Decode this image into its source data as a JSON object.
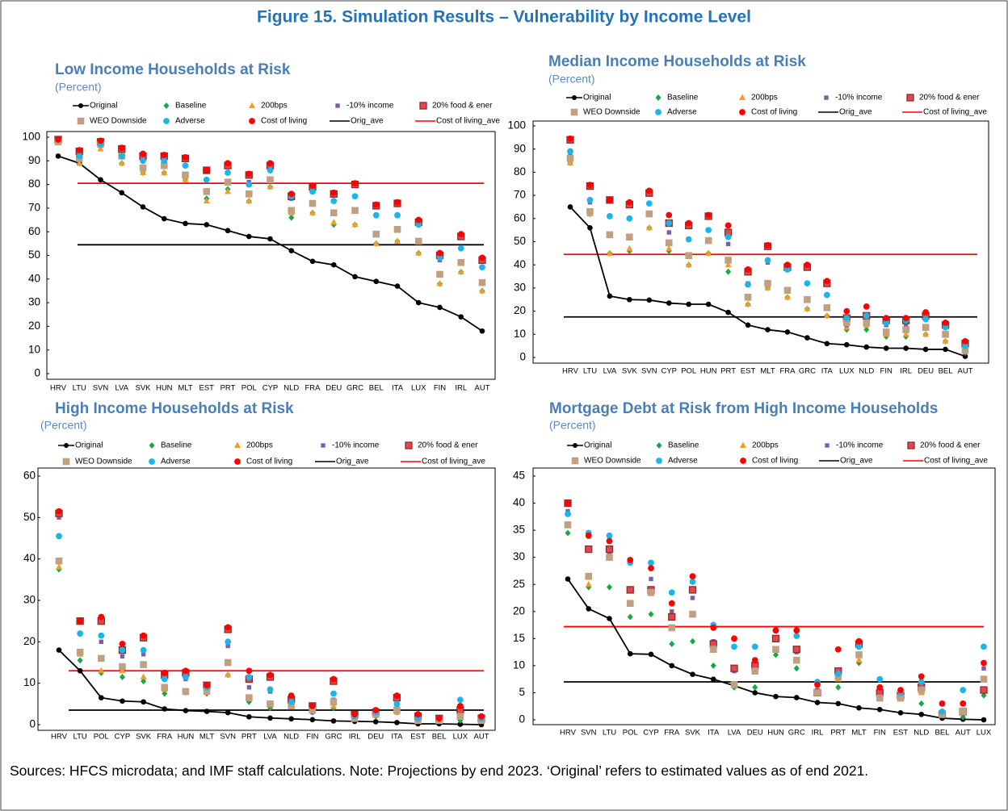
{
  "title": "Figure 15. Simulation Results – Vulnerability by Income Level",
  "note": "Sources: HFCS microdata; and IMF staff calculations. Note: Projections by end 2023. ‘Original’ refers to estimated values as of end 2021.",
  "chart_data": [
    {
      "type": "scatter",
      "title": "Low Income Households at Risk",
      "subtitle": "(Percent)",
      "categories": [
        "HRV",
        "LTU",
        "SVN",
        "LVA",
        "SVK",
        "HUN",
        "MLT",
        "EST",
        "PRT",
        "POL",
        "CYP",
        "NLD",
        "FRA",
        "DEU",
        "GRC",
        "BEL",
        "ITA",
        "LUX",
        "FIN",
        "IRL",
        "AUT"
      ],
      "ylim": [
        0,
        100
      ],
      "yticks": [
        0,
        10,
        20,
        30,
        40,
        50,
        60,
        70,
        80,
        90,
        100
      ],
      "series": [
        {
          "name": "Original",
          "color": "#000000",
          "marker": "line-dot",
          "values": [
            92,
            89,
            82,
            76.5,
            70.5,
            65.5,
            63.5,
            63,
            60.5,
            58,
            57,
            52,
            47.5,
            46,
            41,
            39,
            37,
            30,
            28,
            24,
            18
          ]
        },
        {
          "name": "Baseline",
          "color": "#1aa64a",
          "marker": "diamond",
          "values": [
            98,
            90,
            96,
            89,
            85,
            85,
            82,
            74,
            78,
            73,
            79,
            66,
            68,
            63,
            63,
            55,
            56,
            51,
            38,
            43,
            35
          ]
        },
        {
          "name": "200bps",
          "color": "#f39c2b",
          "marker": "triangle",
          "values": [
            98,
            89,
            95,
            89,
            85,
            85,
            82,
            73,
            77,
            73,
            79,
            68,
            68,
            64,
            63,
            55,
            56,
            51,
            38,
            43,
            35
          ]
        },
        {
          "name": "-10% income",
          "color": "#7b5ea7",
          "marker": "square-small",
          "values": [
            98,
            93,
            97,
            93,
            91,
            91,
            88,
            82,
            85,
            81,
            86,
            74,
            77,
            73,
            75,
            67,
            67,
            63,
            48,
            53,
            45
          ]
        },
        {
          "name": "20% food & ener",
          "color": "#e2474d",
          "edgecolor": "#8a2d2d",
          "marker": "square-edged",
          "values": [
            99,
            94,
            98,
            95,
            92,
            92,
            91,
            86,
            88,
            84,
            88,
            75,
            79,
            76,
            80,
            71,
            72,
            64,
            50,
            58,
            48
          ]
        },
        {
          "name": "WEO Downside",
          "color": "#c0a080",
          "marker": "square",
          "values": [
            98,
            91,
            97,
            92,
            87,
            88,
            84,
            77,
            81,
            76,
            82,
            69,
            72,
            68,
            69,
            59,
            61,
            56,
            42,
            47,
            38.5
          ]
        },
        {
          "name": "Adverse",
          "color": "#1db4ea",
          "marker": "circle",
          "values": [
            99,
            92,
            97,
            92,
            90,
            90,
            88,
            82,
            85,
            80,
            86,
            75,
            77,
            73,
            75,
            67,
            67,
            63,
            49,
            53,
            45
          ]
        },
        {
          "name": "Cost of living",
          "color": "#ff0000",
          "marker": "circle",
          "values": [
            99,
            94.5,
            98.5,
            95.5,
            93,
            92.5,
            91.5,
            86,
            89,
            84.5,
            89,
            76,
            79.5,
            76.5,
            80.5,
            71.5,
            72.5,
            65,
            51,
            59,
            49
          ]
        },
        {
          "name": "Orig_ave",
          "color": "#000000",
          "marker": "hline",
          "value": 54.5
        },
        {
          "name": "Cost of living_ave",
          "color": "#ff0000",
          "marker": "hline",
          "value": 80.5
        }
      ]
    },
    {
      "type": "scatter",
      "title": "Median Income Households at Risk",
      "subtitle": "(Percent)",
      "categories": [
        "HRV",
        "LTU",
        "LVA",
        "SVK",
        "SVN",
        "CYP",
        "POL",
        "HUN",
        "PRT",
        "EST",
        "MLT",
        "FRA",
        "GRC",
        "ITA",
        "LUX",
        "NLD",
        "FIN",
        "IRL",
        "DEU",
        "BEL",
        "AUT"
      ],
      "ylim": [
        0,
        100
      ],
      "yticks": [
        0,
        10,
        20,
        30,
        40,
        50,
        60,
        70,
        80,
        90,
        100
      ],
      "series": [
        {
          "name": "Original",
          "color": "#000000",
          "marker": "line-dot",
          "values": [
            65,
            56,
            26.5,
            25,
            24.8,
            23.5,
            23,
            23,
            19.5,
            14,
            12,
            11,
            8.5,
            6,
            5.5,
            4.5,
            4,
            4,
            3.5,
            3.5,
            0.5
          ]
        },
        {
          "name": "Baseline",
          "color": "#1aa64a",
          "marker": "diamond",
          "values": [
            84,
            62,
            45,
            46,
            56,
            46,
            40,
            45,
            37,
            23,
            30,
            26,
            21,
            18,
            12,
            12,
            9,
            9,
            10,
            7,
            2
          ]
        },
        {
          "name": "200bps",
          "color": "#f39c2b",
          "marker": "triangle",
          "values": [
            84,
            62,
            45,
            47,
            56,
            47,
            40,
            45,
            40,
            23,
            30,
            26,
            21,
            18,
            13,
            14,
            10,
            10,
            10,
            7,
            3
          ]
        },
        {
          "name": "-10% income",
          "color": "#7b5ea7",
          "marker": "square-small",
          "values": [
            87,
            67,
            53,
            52,
            62,
            54,
            44,
            50,
            49,
            32,
            41,
            29,
            25,
            21,
            14,
            16,
            14,
            14,
            13,
            13,
            4
          ]
        },
        {
          "name": "20% food & ener",
          "color": "#e2474d",
          "edgecolor": "#8a2d2d",
          "marker": "square-edged",
          "values": [
            94,
            74,
            68,
            66,
            71,
            58,
            57,
            61,
            54,
            37,
            48,
            39,
            39,
            32,
            17,
            18,
            16,
            16,
            18,
            14,
            6
          ]
        },
        {
          "name": "WEO Downside",
          "color": "#c0a080",
          "marker": "square",
          "values": [
            86,
            63,
            53,
            52,
            62,
            49.5,
            44,
            50.5,
            42,
            26,
            32,
            29,
            25,
            21.5,
            15,
            15,
            11,
            12,
            13,
            10,
            3
          ]
        },
        {
          "name": "Adverse",
          "color": "#1db4ea",
          "marker": "circle",
          "values": [
            89,
            68,
            61,
            60,
            66.5,
            58,
            51,
            55,
            52,
            31.5,
            42,
            38,
            32,
            27,
            17,
            18,
            15,
            16,
            16.5,
            13,
            5
          ]
        },
        {
          "name": "Cost of living",
          "color": "#ff0000",
          "marker": "circle",
          "values": [
            94.5,
            74.5,
            68,
            67,
            72,
            61.5,
            58,
            61.5,
            57,
            38,
            48.5,
            40,
            40,
            33,
            20,
            22,
            17,
            17,
            19.5,
            15,
            7
          ]
        },
        {
          "name": "Orig_ave",
          "color": "#000000",
          "marker": "hline",
          "value": 17.5
        },
        {
          "name": "Cost of living_ave",
          "color": "#ff0000",
          "marker": "hline",
          "value": 44.5
        }
      ]
    },
    {
      "type": "scatter",
      "title": "High Income Households at Risk",
      "subtitle": "(Percent)",
      "categories": [
        "HRV",
        "LTU",
        "POL",
        "CYP",
        "SVK",
        "FRA",
        "HUN",
        "MLT",
        "SVN",
        "PRT",
        "LVA",
        "NLD",
        "FIN",
        "GRC",
        "IRL",
        "DEU",
        "ITA",
        "EST",
        "BEL",
        "LUX",
        "AUT"
      ],
      "ylim": [
        0,
        60
      ],
      "yticks": [
        0,
        10,
        20,
        30,
        40,
        50,
        60
      ],
      "series": [
        {
          "name": "Original",
          "color": "#000000",
          "marker": "line-dot",
          "values": [
            18,
            13,
            6.5,
            5.7,
            5.5,
            3.8,
            3.4,
            3.2,
            2.9,
            1.9,
            1.6,
            1.4,
            1.2,
            0.9,
            0.8,
            0.7,
            0.5,
            0.2,
            0.2,
            0.1,
            0
          ]
        },
        {
          "name": "Baseline",
          "color": "#1aa64a",
          "marker": "diamond",
          "values": [
            37.5,
            15.5,
            12.5,
            11.5,
            10.5,
            7.5,
            7.8,
            7.5,
            12,
            5.5,
            4,
            4.5,
            3,
            4,
            1.5,
            2,
            3,
            1,
            1,
            1,
            1
          ]
        },
        {
          "name": "200bps",
          "color": "#f39c2b",
          "marker": "triangle",
          "values": [
            38,
            17,
            13,
            13,
            11.5,
            8.5,
            8,
            8,
            12,
            6.5,
            5,
            5,
            3.5,
            4.5,
            1.5,
            2.5,
            3,
            1,
            1,
            2,
            1
          ]
        },
        {
          "name": "-10% income",
          "color": "#7b5ea7",
          "marker": "square-small",
          "values": [
            50,
            22,
            20,
            16.5,
            17,
            11,
            11,
            8.5,
            19,
            9,
            8,
            5,
            3,
            6,
            2,
            3,
            4,
            1.5,
            1,
            2.5,
            1.5
          ]
        },
        {
          "name": "20% food & ener",
          "color": "#e2474d",
          "edgecolor": "#8a2d2d",
          "marker": "square-edged",
          "values": [
            51,
            25,
            25,
            18,
            21,
            12,
            12.5,
            9.5,
            23,
            11,
            11.5,
            6,
            4.5,
            10.5,
            2.5,
            3,
            6.5,
            2,
            1.5,
            3.5,
            1.5
          ]
        },
        {
          "name": "WEO Downside",
          "color": "#c0a080",
          "marker": "square",
          "values": [
            39.5,
            17.5,
            16,
            14,
            14.5,
            9,
            8,
            8,
            15,
            6.5,
            5,
            4.5,
            3.5,
            5.5,
            1.5,
            2.5,
            3.5,
            1,
            1,
            2,
            1
          ]
        },
        {
          "name": "Adverse",
          "color": "#1db4ea",
          "marker": "circle",
          "values": [
            45.5,
            22,
            21.5,
            18,
            18,
            11,
            11.5,
            9,
            20,
            11.5,
            8.5,
            5.5,
            4.5,
            7.5,
            2,
            3,
            5,
            1.5,
            1.5,
            6,
            1.5
          ]
        },
        {
          "name": "Cost of living",
          "color": "#ff0000",
          "marker": "circle",
          "values": [
            51.5,
            25,
            26,
            19.5,
            21.5,
            12.5,
            13,
            9.5,
            23.5,
            13,
            12,
            7,
            4.5,
            11,
            2.5,
            3.5,
            7,
            2.5,
            1.5,
            4.5,
            2
          ]
        },
        {
          "name": "Orig_ave",
          "color": "#000000",
          "marker": "hline",
          "value": 3.5
        },
        {
          "name": "Cost of living_ave",
          "color": "#ff0000",
          "marker": "hline",
          "value": 13
        }
      ]
    },
    {
      "type": "scatter",
      "title": "Mortgage Debt at Risk from High Income Households",
      "subtitle": "(Percent)",
      "categories": [
        "HRV",
        "SVN",
        "LTU",
        "POL",
        "CYP",
        "FRA",
        "SVK",
        "ITA",
        "LVA",
        "DEU",
        "HUN",
        "GRC",
        "IRL",
        "PRT",
        "MLT",
        "FIN",
        "EST",
        "NLD",
        "BEL",
        "AUT",
        "LUX"
      ],
      "ylim": [
        0,
        45
      ],
      "yticks": [
        0,
        5,
        10,
        15,
        20,
        25,
        30,
        35,
        40,
        45
      ],
      "series": [
        {
          "name": "Original",
          "color": "#000000",
          "marker": "line-dot",
          "values": [
            26,
            20.5,
            18.7,
            12.2,
            12.1,
            10,
            8.4,
            7.5,
            6.3,
            5,
            4.3,
            4.1,
            3.2,
            3,
            2.2,
            1.9,
            1.3,
            1,
            0.3,
            0.1,
            0
          ]
        },
        {
          "name": "Baseline",
          "color": "#1aa64a",
          "marker": "diamond",
          "values": [
            34.5,
            24.5,
            24.5,
            19,
            19.5,
            14,
            14.5,
            10,
            6,
            6,
            12,
            9.5,
            5,
            6,
            10.5,
            4,
            4,
            3,
            1,
            0.5,
            4.5
          ]
        },
        {
          "name": "200bps",
          "color": "#f39c2b",
          "marker": "triangle",
          "values": [
            36,
            25,
            30,
            21.5,
            24,
            17,
            19.5,
            13,
            6.5,
            9,
            13,
            11,
            5,
            7.5,
            11,
            4,
            4,
            5,
            1,
            1.5,
            7.5
          ]
        },
        {
          "name": "-10% income",
          "color": "#7b5ea7",
          "marker": "square-small",
          "values": [
            38.5,
            31.5,
            31,
            24,
            26,
            20,
            22.5,
            14.5,
            9,
            10,
            15,
            12.5,
            5.5,
            9,
            13.5,
            5,
            4.5,
            6,
            1,
            1.5,
            9.5
          ]
        },
        {
          "name": "20% food & ener",
          "color": "#e2474d",
          "edgecolor": "#8a2d2d",
          "marker": "square-edged",
          "values": [
            40,
            31.5,
            31.5,
            24,
            24,
            19,
            24,
            14,
            9.5,
            10,
            15,
            13,
            5,
            9,
            14,
            5,
            4.5,
            6,
            1,
            1.5,
            5.5
          ]
        },
        {
          "name": "WEO Downside",
          "color": "#c0a080",
          "marker": "square",
          "values": [
            36,
            26.5,
            30,
            21.5,
            23.5,
            17,
            19.5,
            13,
            6.5,
            9,
            13,
            11,
            5,
            8,
            12,
            4,
            4,
            5.5,
            1,
            1.5,
            7.5
          ]
        },
        {
          "name": "Adverse",
          "color": "#1db4ea",
          "marker": "circle",
          "values": [
            38,
            34.5,
            34,
            29,
            29,
            23.5,
            25.5,
            17.5,
            13.5,
            13.5,
            16.5,
            15.5,
            7,
            8.5,
            13.5,
            7.5,
            5,
            7,
            1.5,
            5.5,
            13.5
          ]
        },
        {
          "name": "Cost of living",
          "color": "#ff0000",
          "marker": "circle",
          "values": [
            40,
            34,
            33,
            29.5,
            28,
            21.5,
            26.5,
            17,
            15,
            11,
            16.5,
            16.5,
            6.5,
            13,
            14.5,
            6,
            5.5,
            8,
            3,
            3,
            10.5
          ]
        },
        {
          "name": "Orig_ave",
          "color": "#000000",
          "marker": "hline",
          "value": 7
        },
        {
          "name": "Cost of living_ave",
          "color": "#ff0000",
          "marker": "hline",
          "value": 17.2
        }
      ]
    }
  ]
}
